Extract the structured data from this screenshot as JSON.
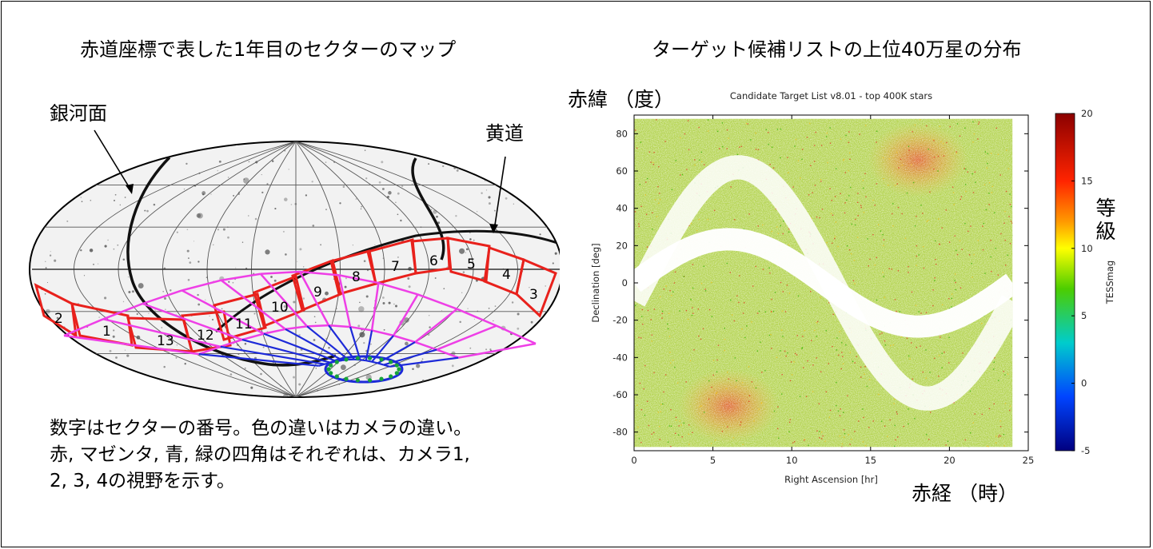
{
  "left_panel": {
    "title": "赤道座標で表した1年目のセクターのマップ",
    "galactic_plane_label": "銀河面",
    "ecliptic_label": "黄道",
    "sector_numbers": [
      "2",
      "1",
      "13",
      "12",
      "11",
      "10",
      "9",
      "8",
      "7",
      "6",
      "5",
      "4",
      "3"
    ],
    "caption_lines": [
      "数字はセクターの番号。色の違いはカメラの違い。",
      "赤, マゼンタ, 青, 緑の四角はそれぞれは、カメラ1,",
      "2, 3, 4の視野を示す。"
    ],
    "camera_colors": {
      "camera1": "#e8211c",
      "camera2": "#ee3fe6",
      "camera3": "#1d2ad8",
      "camera4": "#17a33a"
    }
  },
  "right_panel": {
    "title": "ターゲット候補リストの上位40万星の分布",
    "dec_axis_jp": "赤緯 （度）",
    "ra_axis_jp": "赤経 （時）",
    "mag_label_jp": "等級"
  },
  "chart_data": {
    "type": "scatter",
    "title": "Candidate Target List v8.01 - top 400K stars",
    "xlabel": "Right Ascension [hr]",
    "ylabel": "Declination [deg]",
    "xlim": [
      0,
      25
    ],
    "ylim": [
      -90,
      90
    ],
    "x_ticks": [
      0,
      5,
      10,
      15,
      20,
      25
    ],
    "y_ticks": [
      80,
      60,
      40,
      20,
      0,
      -20,
      -40,
      -60,
      -80
    ],
    "grid": false,
    "colorbar": {
      "label": "TESSmag",
      "range": [
        -5,
        20
      ],
      "ticks": [
        20,
        15,
        10,
        5,
        0,
        -5
      ],
      "colors": [
        "#8b0000",
        "#ff2400",
        "#ff9900",
        "#ffff00",
        "#4ccd00",
        "#00cccc",
        "#0044ff",
        "#000080"
      ]
    },
    "density_peaks": [
      {
        "ra": 18,
        "dec": 66,
        "note": "north ecliptic pole"
      },
      {
        "ra": 6,
        "dec": -66,
        "note": "south ecliptic pole"
      }
    ],
    "excluded_bands": [
      "galactic plane",
      "ecliptic"
    ]
  }
}
